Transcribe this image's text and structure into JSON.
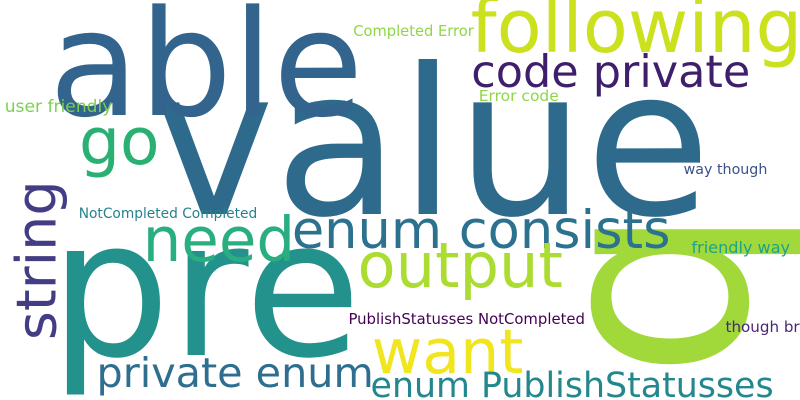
{
  "words": [
    {
      "text": "value",
      "color": "#2e6a8c"
    },
    {
      "text": "pre",
      "color": "#23918c"
    },
    {
      "text": "able",
      "color": "#33648d"
    },
    {
      "text": "b",
      "color": "#a1d93b"
    },
    {
      "text": "following",
      "color": "#cbe11e"
    },
    {
      "text": "code private",
      "color": "#3f1f6b"
    },
    {
      "text": "go",
      "color": "#2ab073"
    },
    {
      "text": "need",
      "color": "#29ae80"
    },
    {
      "text": "enum consists",
      "color": "#2c728e"
    },
    {
      "text": "string",
      "color": "#433d84"
    },
    {
      "text": "output",
      "color": "#aadc32"
    },
    {
      "text": "want",
      "color": "#f1e51d"
    },
    {
      "text": "private enum",
      "color": "#2e6e8e"
    },
    {
      "text": "enum PublishStatusses",
      "color": "#23878d"
    },
    {
      "text": "Completed Error",
      "color": "#8fd744"
    },
    {
      "text": "Error code",
      "color": "#8fd744"
    },
    {
      "text": "user friendly",
      "color": "#7ad151"
    },
    {
      "text": "NotCompleted Completed",
      "color": "#26818e"
    },
    {
      "text": "way though",
      "color": "#3b518b"
    },
    {
      "text": "friendly way",
      "color": "#1fa187"
    },
    {
      "text": "PublishStatusses NotCompleted",
      "color": "#440154"
    },
    {
      "text": "though br",
      "color": "#482677"
    }
  ]
}
